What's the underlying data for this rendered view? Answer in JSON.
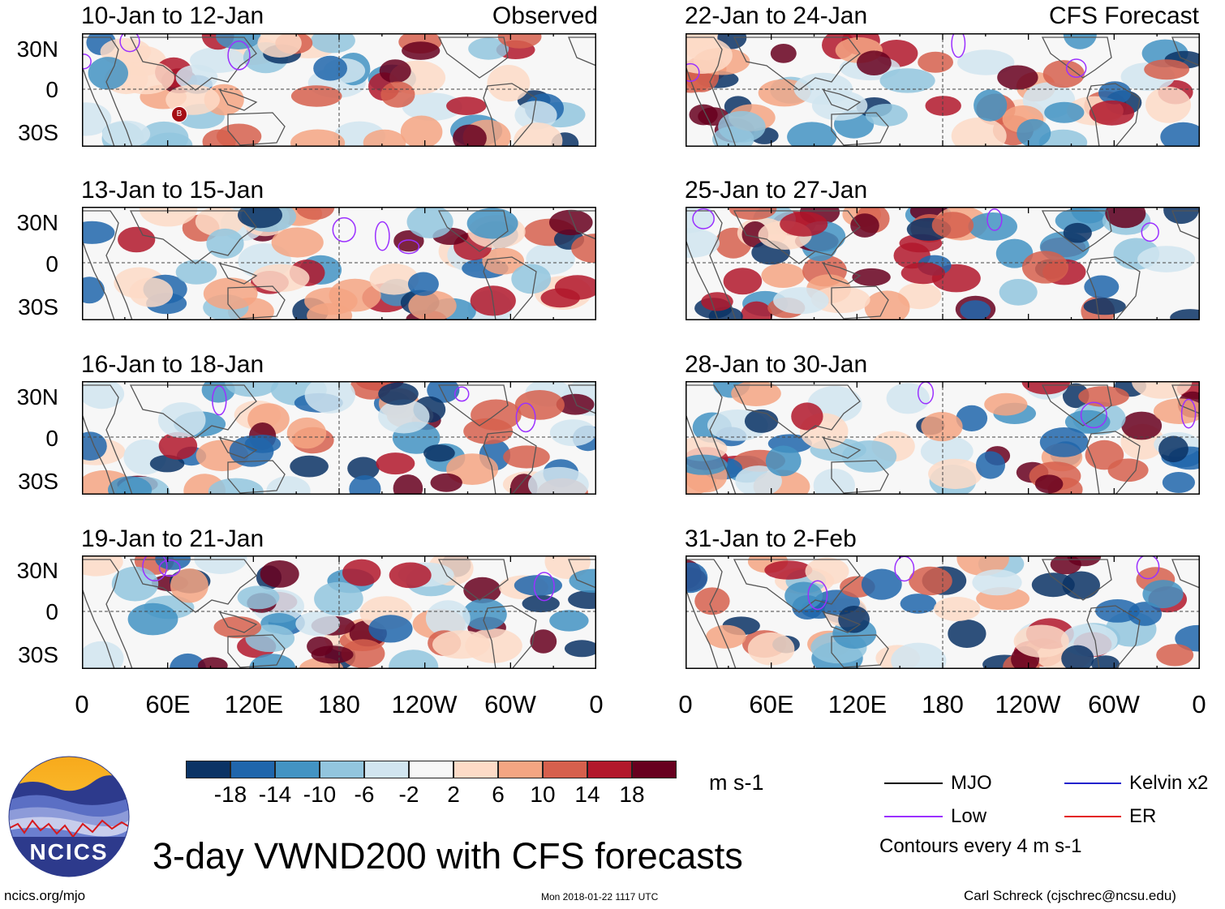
{
  "panels_left": [
    {
      "title": "10-Jan to 12-Jan",
      "tag": "Observed",
      "storm_label": "B"
    },
    {
      "title": "13-Jan to 15-Jan",
      "tag": ""
    },
    {
      "title": "16-Jan to 18-Jan",
      "tag": ""
    },
    {
      "title": "19-Jan to 21-Jan",
      "tag": ""
    }
  ],
  "panels_right": [
    {
      "title": "22-Jan to 24-Jan",
      "tag": "CFS Forecast"
    },
    {
      "title": "25-Jan to 27-Jan",
      "tag": ""
    },
    {
      "title": "28-Jan to 30-Jan",
      "tag": ""
    },
    {
      "title": "31-Jan to 2-Feb",
      "tag": ""
    }
  ],
  "lat_labels": [
    "30N",
    "0",
    "30S"
  ],
  "lon_labels": [
    "0",
    "60E",
    "120E",
    "180",
    "120W",
    "60W",
    "0"
  ],
  "colorbar": {
    "colors": [
      "#0b3365",
      "#2066ac",
      "#4393c3",
      "#92c5de",
      "#d1e5f0",
      "#f7f7f7",
      "#fddbc7",
      "#f4a582",
      "#d6604d",
      "#b2182b",
      "#67001f"
    ],
    "labels": [
      "-18",
      "-14",
      "-10",
      "-6",
      "-2",
      "2",
      "6",
      "10",
      "14",
      "18"
    ],
    "units": "m s-1"
  },
  "legend": {
    "items": [
      {
        "label": "MJO",
        "color": "#000000"
      },
      {
        "label": "Kelvin x2",
        "color": "#2222cc"
      },
      {
        "label": "Low",
        "color": "#9b30ff"
      },
      {
        "label": "ER",
        "color": "#e31a1c"
      }
    ],
    "note": "Contours every 4 m s-1"
  },
  "logo": {
    "text": "NCICS"
  },
  "main_title": "3-day VWND200 with CFS forecasts",
  "footer": {
    "left": "ncics.org/mjo",
    "center": "Mon 2018-01-22 1117 UTC",
    "right": "Carl Schreck (cjschrec@ncsu.edu)"
  }
}
